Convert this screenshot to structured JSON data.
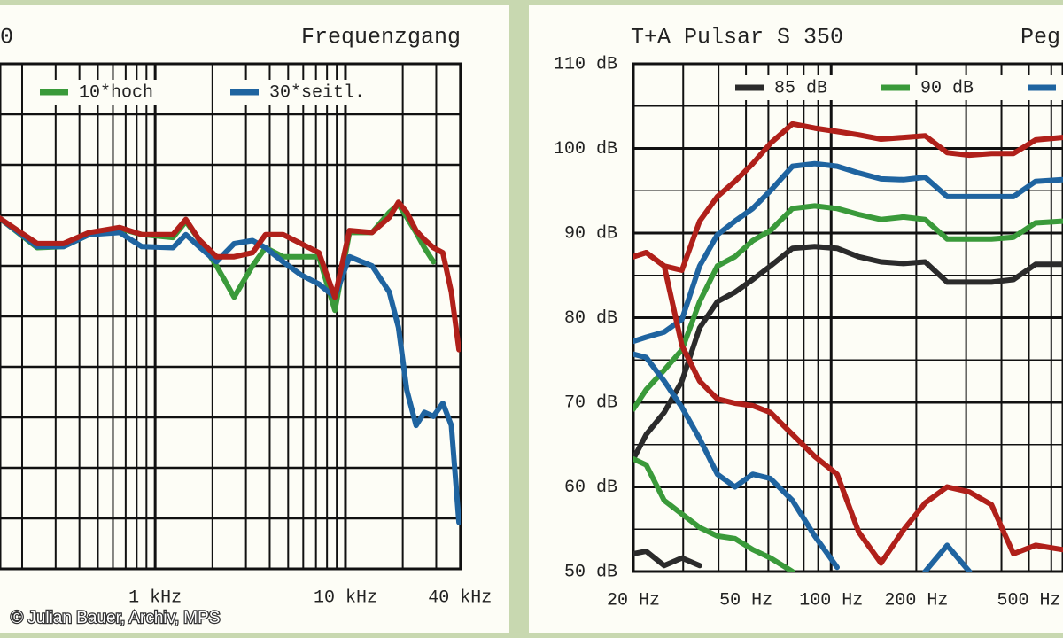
{
  "credit": "© Julian Bauer, Archiv, MPS",
  "chart_data": [
    {
      "type": "line",
      "title_fragment": "0",
      "title": "Frequenzgang",
      "log_x": true,
      "grid": true,
      "x": [
        150,
        240,
        330,
        450,
        650,
        850,
        1240,
        1450,
        1700,
        2100,
        2600,
        3250,
        3800,
        4700,
        5850,
        7250,
        8800,
        10500,
        13800,
        17000,
        19000,
        21000,
        23500,
        26000,
        29000,
        32500,
        36000,
        39500
      ],
      "xlim": [
        153,
        40300
      ],
      "xticks": [
        {
          "value": 1000,
          "label": "1 kHz"
        },
        {
          "value": 10000,
          "label": "10 kHz"
        },
        {
          "value": 40000,
          "label": "40 kHz"
        }
      ],
      "xgrid": [
        200,
        300,
        400,
        500,
        600,
        700,
        800,
        900,
        1000,
        2000,
        3000,
        4000,
        5000,
        6000,
        7000,
        8000,
        9000,
        10000,
        20000,
        30000,
        40000
      ],
      "ylim": [
        40,
        90
      ],
      "ygrid": [
        40,
        45,
        50,
        55,
        60,
        65,
        70,
        75,
        80,
        85,
        90
      ],
      "series": [
        {
          "name": "10*hoch",
          "color": "#3a9a3a",
          "values": [
            74.8,
            71.8,
            71.9,
            73.1,
            73.7,
            73.1,
            72.8,
            74.4,
            72.6,
            70,
            66.9,
            70,
            71.8,
            70.9,
            70.9,
            70.9,
            65.6,
            73.3,
            73.3,
            75.3,
            76.1,
            74.8,
            73.3,
            71.8,
            70.4,
            null,
            null,
            null
          ]
        },
        {
          "name": "30*seitl.",
          "color": "#1f64a0",
          "values": [
            74.8,
            71.9,
            71.9,
            73.1,
            73.3,
            71.9,
            71.8,
            73.1,
            71.9,
            70.4,
            72.2,
            72.5,
            71.8,
            70.4,
            69.1,
            68.2,
            66.9,
            70.9,
            70,
            67.4,
            63.9,
            57.7,
            54.2,
            55.5,
            55.1,
            56.4,
            54.2,
            44.6
          ]
        },
        {
          "color": "#b0201a",
          "values": [
            74.8,
            72.2,
            72.2,
            73.3,
            73.8,
            73.1,
            73.1,
            74.6,
            72.6,
            70.9,
            70.9,
            71.3,
            73.1,
            73.1,
            72.2,
            71.3,
            66.9,
            73.5,
            73.3,
            74.8,
            76.3,
            75.3,
            73.5,
            72.6,
            71.8,
            71.3,
            67.4,
            61.7
          ]
        }
      ]
    },
    {
      "type": "line",
      "title": "T+A Pulsar S 350",
      "title_fragment": "Peg",
      "log_x": true,
      "grid": true,
      "x": [
        20,
        22.2,
        25.7,
        29.7,
        34.3,
        39.6,
        45.7,
        52.8,
        61,
        73,
        87.5,
        105,
        125,
        150,
        180,
        215,
        257,
        308,
        369,
        441,
        528,
        656
      ],
      "xlim": [
        20,
        660
      ],
      "xticks": [
        {
          "value": 20,
          "label": "20 Hz"
        },
        {
          "value": 50,
          "label": "50 Hz"
        },
        {
          "value": 100,
          "label": "100 Hz"
        },
        {
          "value": 200,
          "label": "200 Hz"
        },
        {
          "value": 500,
          "label": "500 Hz"
        }
      ],
      "xgrid": [
        20,
        30,
        40,
        50,
        60,
        70,
        80,
        90,
        100,
        200,
        300,
        400,
        500,
        600
      ],
      "ylim": [
        50,
        110
      ],
      "yticks": [
        {
          "value": 50,
          "label": "50 dB"
        },
        {
          "value": 60,
          "label": "60 dB"
        },
        {
          "value": 70,
          "label": "70 dB"
        },
        {
          "value": 80,
          "label": "80 dB"
        },
        {
          "value": 90,
          "label": "90 dB"
        },
        {
          "value": 100,
          "label": "100 dB"
        },
        {
          "value": 110,
          "label": "110 dB"
        }
      ],
      "minor_yticks": [
        55,
        65,
        75,
        85,
        95,
        105
      ],
      "series": [
        {
          "name": "85 dB",
          "color": "#2b2b2b",
          "values": [
            63.3,
            66.2,
            68.8,
            72.5,
            78.8,
            81.9,
            83.0,
            84.5,
            86.1,
            88.2,
            88.4,
            88.2,
            87.2,
            86.6,
            86.4,
            86.6,
            84.2,
            84.2,
            84.2,
            84.5,
            86.3,
            86.3
          ]
        },
        {
          "name": "90 dB",
          "color": "#3a9a3a",
          "values": [
            69.2,
            71.5,
            73.8,
            76.2,
            81.9,
            86.1,
            87.2,
            89.1,
            90.3,
            92.9,
            93.2,
            92.9,
            92.2,
            91.6,
            91.9,
            91.6,
            89.3,
            89.3,
            89.3,
            89.5,
            91.2,
            91.4
          ]
        },
        {
          "color": "#1f64a0",
          "legend_swatch_only": true,
          "values": [
            77.2,
            77.7,
            78.3,
            79.8,
            86.1,
            89.8,
            91.4,
            92.9,
            95.0,
            97.9,
            98.2,
            97.9,
            97.1,
            96.4,
            96.3,
            96.6,
            94.3,
            94.3,
            94.3,
            94.3,
            96.1,
            96.3
          ]
        },
        {
          "color": "#b0201a",
          "values": [
            87.2,
            87.7,
            86.1,
            85.6,
            91.4,
            94.3,
            96.1,
            98.2,
            100.6,
            102.9,
            102.4,
            102.0,
            101.6,
            101.1,
            101.3,
            101.5,
            99.5,
            99.2,
            99.4,
            99.4,
            101.0,
            101.3
          ]
        },
        {
          "color": "#2b2b2b",
          "values": [
            52.1,
            52.4,
            50.7,
            51.6,
            50.7,
            null,
            null,
            null,
            null,
            null,
            null,
            null,
            null,
            null,
            null,
            null,
            null,
            null,
            null,
            null,
            null,
            null
          ]
        },
        {
          "color": "#3a9a3a",
          "values": [
            63.3,
            62.6,
            58.4,
            56.8,
            55.2,
            54.2,
            53.9,
            52.6,
            51.6,
            50.0,
            null,
            null,
            null,
            null,
            null,
            null,
            null,
            null,
            null,
            null,
            null,
            null
          ]
        },
        {
          "color": "#1f64a0",
          "values": [
            75.7,
            75.3,
            72.5,
            69.4,
            65.7,
            61.5,
            60.0,
            61.5,
            61.0,
            58.4,
            54.2,
            50.5,
            null,
            null,
            null,
            50.0,
            53.1,
            50.0,
            null,
            null,
            null,
            null
          ]
        },
        {
          "color": "#b0201a",
          "values": [
            87.2,
            87.7,
            86.1,
            76.7,
            72.5,
            70.4,
            69.9,
            69.6,
            68.8,
            66.2,
            63.6,
            61.5,
            54.7,
            51.0,
            54.9,
            58.1,
            60.0,
            59.4,
            57.9,
            52.1,
            53.1,
            52.6
          ]
        }
      ]
    }
  ]
}
